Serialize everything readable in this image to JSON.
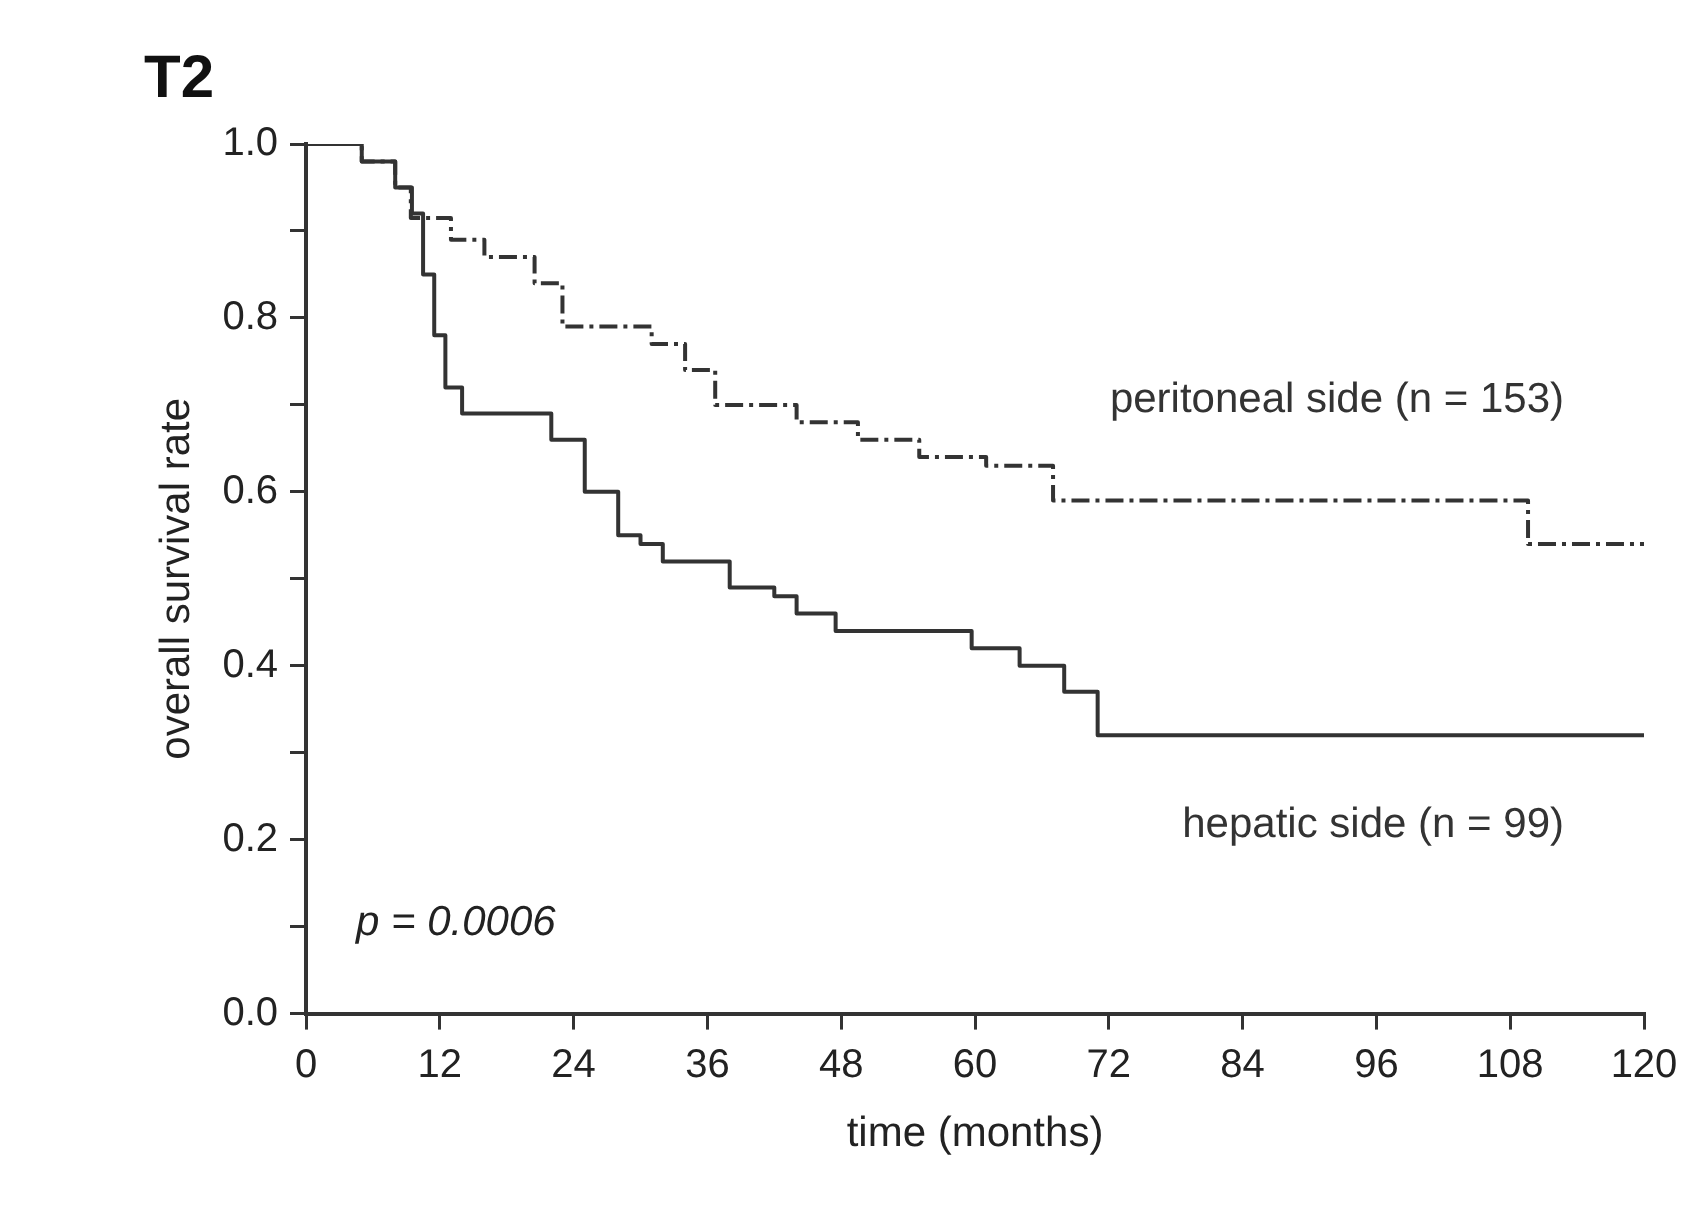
{
  "chart_data": {
    "type": "step",
    "title": "T2",
    "xlabel": "time (months)",
    "ylabel": "overall survival rate",
    "annotations": [
      "p = 0.0006"
    ],
    "xlim": [
      0,
      120
    ],
    "xticks": [
      0,
      12,
      24,
      36,
      48,
      60,
      72,
      84,
      96,
      108,
      120
    ],
    "ylim": [
      0,
      1.0
    ],
    "yticks": [
      {
        "value": 0,
        "label": "0.0"
      },
      {
        "value": 0.1,
        "label": null
      },
      {
        "value": 0.2,
        "label": "0.2"
      },
      {
        "value": 0.3,
        "label": null
      },
      {
        "value": 0.4,
        "label": "0.4"
      },
      {
        "value": 0.5,
        "label": null
      },
      {
        "value": 0.6,
        "label": "0.6"
      },
      {
        "value": 0.7,
        "label": null
      },
      {
        "value": 0.8,
        "label": "0.8"
      },
      {
        "value": 0.9,
        "label": null
      },
      {
        "value": 1.0,
        "label": "1.0"
      }
    ],
    "grid": false,
    "legend": false,
    "marker": "none",
    "series": [
      {
        "name": "peritoneal side (n = 153)",
        "color": "#333333",
        "line_style": "dashed",
        "x": [
          0,
          5,
          8,
          9.4,
          13,
          16,
          20.5,
          23,
          30,
          31,
          34,
          36.7,
          44,
          49.5,
          55,
          61,
          67,
          109.6,
          120
        ],
        "values": [
          1.0,
          0.98,
          0.95,
          0.915,
          0.89,
          0.87,
          0.84,
          0.79,
          0.79,
          0.77,
          0.74,
          0.7,
          0.68,
          0.66,
          0.64,
          0.63,
          0.59,
          0.54,
          0.54
        ]
      },
      {
        "name": "hepatic side (n = 99)",
        "color": "#333333",
        "line_style": "solid",
        "x": [
          0,
          5,
          8,
          9.5,
          10.5,
          11.5,
          12.5,
          14,
          20,
          22,
          25,
          28,
          30,
          32,
          36,
          38,
          42,
          44,
          47.5,
          59.7,
          64,
          68,
          71,
          120
        ],
        "values": [
          1.0,
          0.98,
          0.95,
          0.92,
          0.85,
          0.78,
          0.72,
          0.69,
          0.69,
          0.66,
          0.6,
          0.55,
          0.54,
          0.52,
          0.52,
          0.49,
          0.48,
          0.46,
          0.44,
          0.42,
          0.4,
          0.37,
          0.32,
          0.32
        ]
      }
    ]
  }
}
